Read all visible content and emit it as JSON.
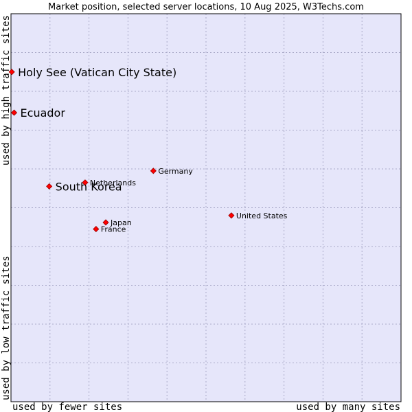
{
  "chart_data": {
    "type": "scatter",
    "title": "Market position, selected server locations, 10 Aug 2025, W3Techs.com",
    "xlabel_left": "used by fewer sites",
    "xlabel_right": "used by many sites",
    "ylabel_top": "used by high traffic sites",
    "ylabel_bottom": "used by low traffic sites",
    "xlim": [
      0,
      100
    ],
    "ylim": [
      0,
      100
    ],
    "grid": true,
    "points": [
      {
        "name": "Holy See (Vatican City State)",
        "x": 0.2,
        "y": 85.0,
        "highlight": true
      },
      {
        "name": "Ecuador",
        "x": 0.8,
        "y": 74.5,
        "highlight": true
      },
      {
        "name": "South Korea",
        "x": 9.8,
        "y": 55.5,
        "highlight": true
      },
      {
        "name": "Netherlands",
        "x": 19.0,
        "y": 56.5,
        "highlight": false
      },
      {
        "name": "Germany",
        "x": 36.5,
        "y": 59.5,
        "highlight": false
      },
      {
        "name": "United States",
        "x": 56.5,
        "y": 48.0,
        "highlight": false
      },
      {
        "name": "Japan",
        "x": 24.3,
        "y": 46.2,
        "highlight": false
      },
      {
        "name": "France",
        "x": 21.8,
        "y": 44.5,
        "highlight": false
      }
    ]
  },
  "colors": {
    "plot_bg": "#e6e6fa",
    "grid": "#a9a9c8",
    "marker": "#ff0000",
    "marker_edge": "#990000"
  }
}
